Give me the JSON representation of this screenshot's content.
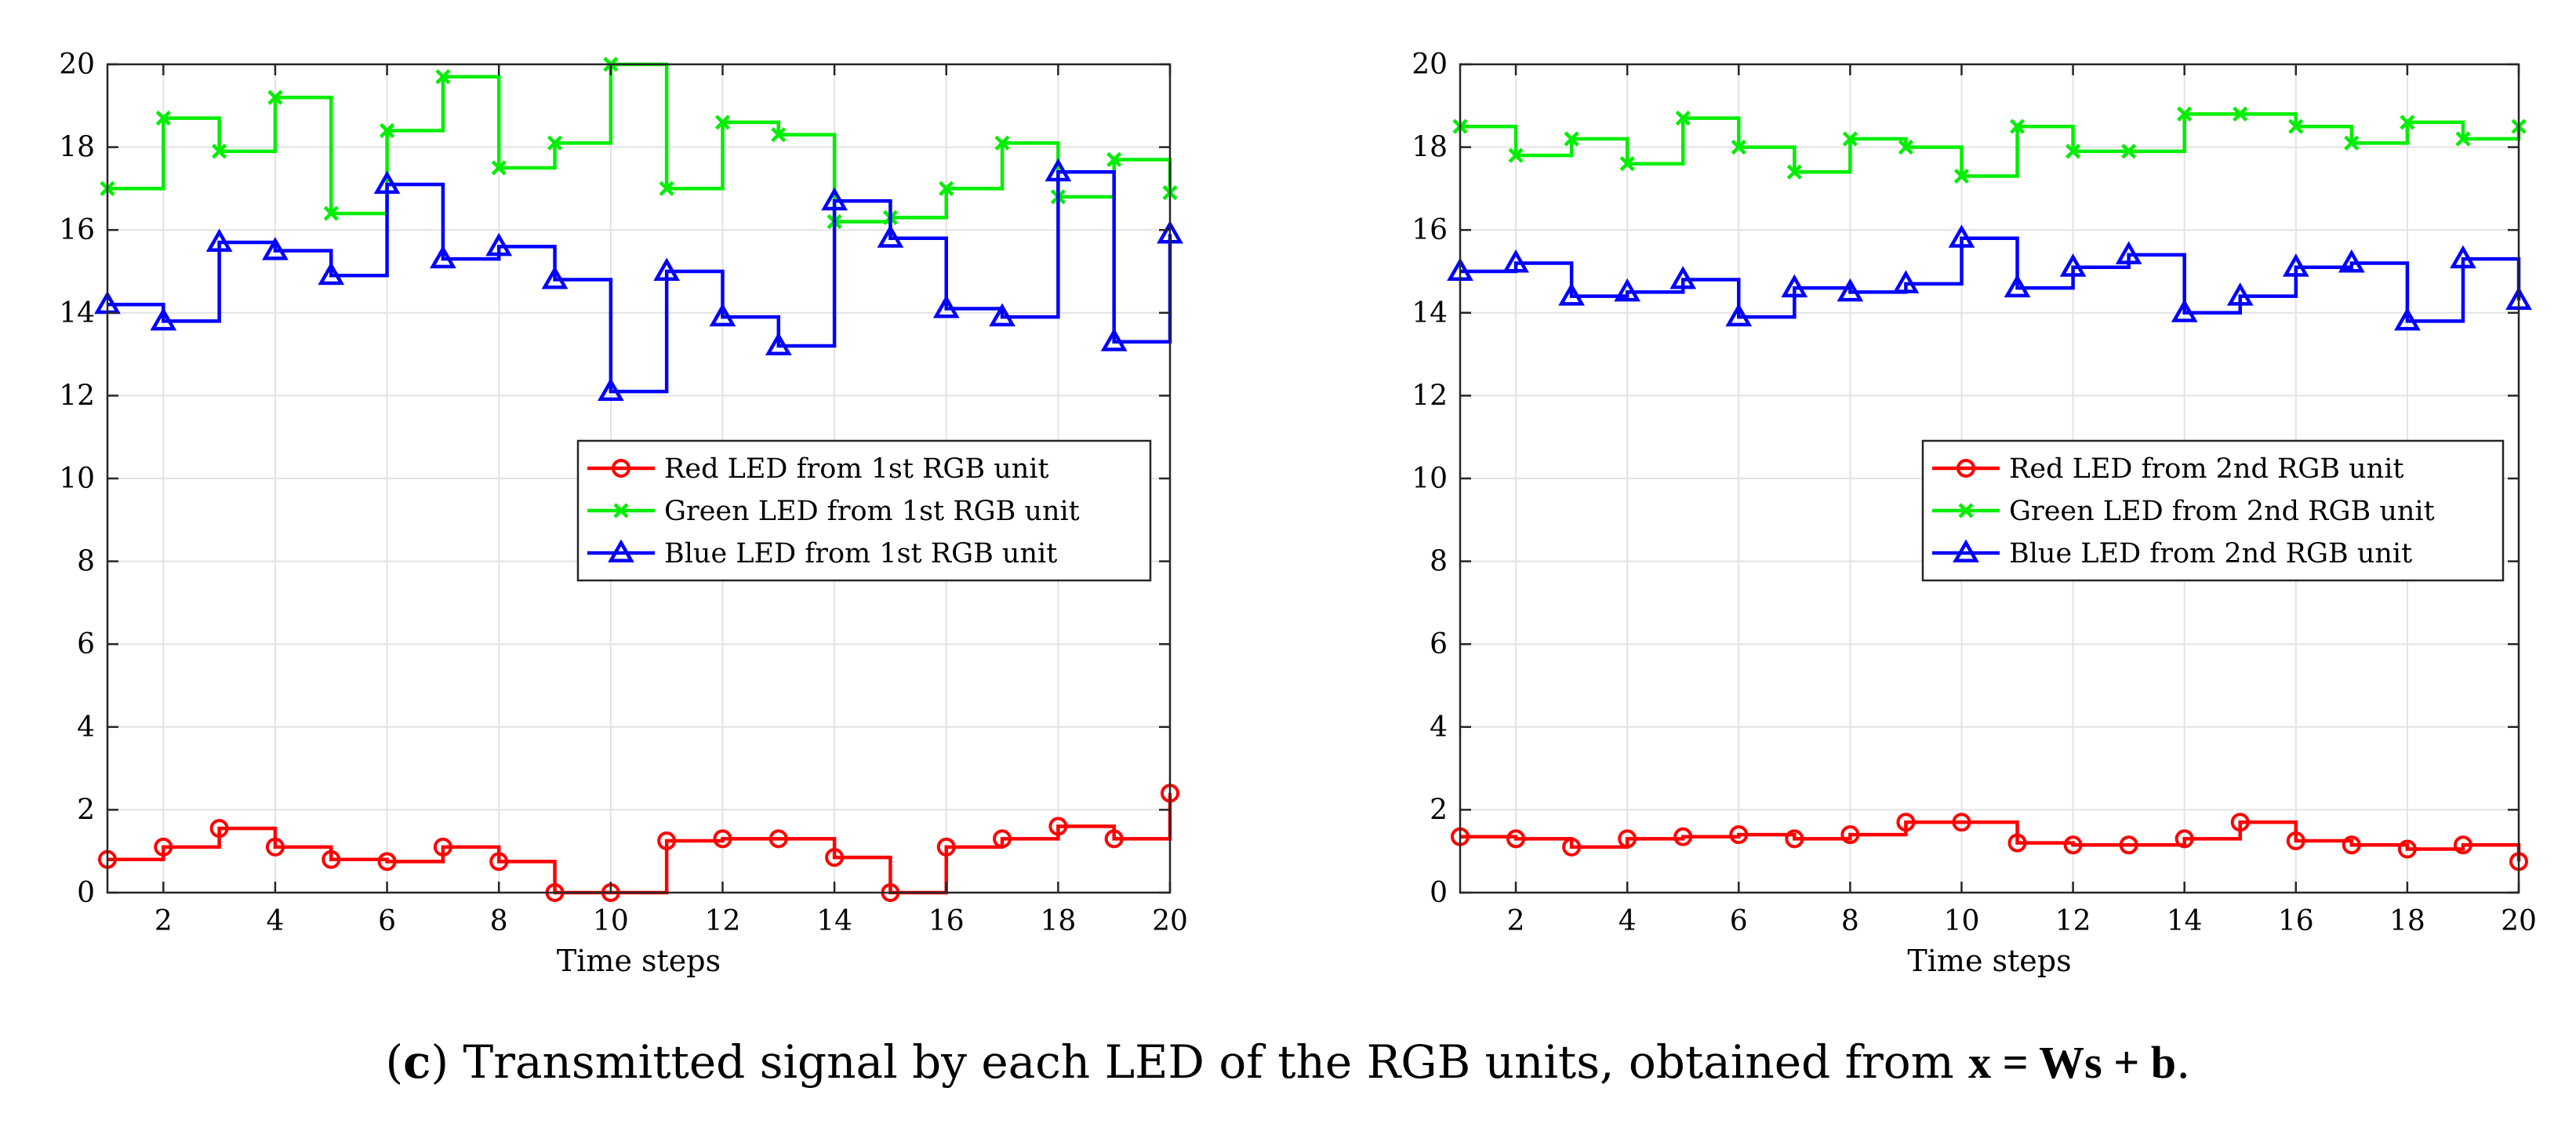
{
  "caption": {
    "label": "c",
    "text": " Transmitted signal by each LED of the RGB units, obtained from ",
    "formula": "x = Ws + b",
    "end": "."
  },
  "colors": {
    "red": "#ff0000",
    "green": "#00ee00",
    "blue": "#0000ff",
    "grid": "#e3e3e3",
    "axis": "#262626"
  },
  "chart_data": [
    {
      "type": "line",
      "step": "post",
      "xlabel": "Time steps",
      "ylabel": "",
      "xlim": [
        1,
        20
      ],
      "ylim": [
        0,
        20
      ],
      "xticks": [
        2,
        4,
        6,
        8,
        10,
        12,
        14,
        16,
        18,
        20
      ],
      "yticks": [
        0,
        2,
        4,
        6,
        8,
        10,
        12,
        14,
        16,
        18,
        20
      ],
      "grid": true,
      "legend_position": "middle-right",
      "x": [
        1,
        2,
        3,
        4,
        5,
        6,
        7,
        8,
        9,
        10,
        11,
        12,
        13,
        14,
        15,
        16,
        17,
        18,
        19,
        20
      ],
      "series": [
        {
          "name": "Red LED from 1st RGB unit",
          "color": "red",
          "marker": "circle",
          "values": [
            0.8,
            1.1,
            1.55,
            1.1,
            0.8,
            0.75,
            1.1,
            0.75,
            0.0,
            0.0,
            1.25,
            1.3,
            1.3,
            0.85,
            0.0,
            1.1,
            1.3,
            1.6,
            1.3,
            2.4
          ]
        },
        {
          "name": "Green LED from 1st RGB unit",
          "color": "green",
          "marker": "x",
          "values": [
            17.0,
            18.7,
            17.9,
            19.2,
            16.4,
            18.4,
            19.7,
            17.5,
            18.1,
            20.0,
            17.0,
            18.6,
            18.3,
            16.2,
            16.3,
            17.0,
            18.1,
            16.8,
            17.7,
            16.9
          ]
        },
        {
          "name": "Blue LED from 1st RGB unit",
          "color": "blue",
          "marker": "triangle",
          "values": [
            14.2,
            13.8,
            15.7,
            15.5,
            14.9,
            17.1,
            15.3,
            15.6,
            14.8,
            12.1,
            15.0,
            13.9,
            13.2,
            16.7,
            15.8,
            14.1,
            13.9,
            17.4,
            13.3,
            15.9
          ]
        }
      ]
    },
    {
      "type": "line",
      "step": "post",
      "xlabel": "Time steps",
      "ylabel": "",
      "xlim": [
        1,
        20
      ],
      "ylim": [
        0,
        20
      ],
      "xticks": [
        2,
        4,
        6,
        8,
        10,
        12,
        14,
        16,
        18,
        20
      ],
      "yticks": [
        0,
        2,
        4,
        6,
        8,
        10,
        12,
        14,
        16,
        18,
        20
      ],
      "grid": true,
      "legend_position": "middle-right",
      "x": [
        1,
        2,
        3,
        4,
        5,
        6,
        7,
        8,
        9,
        10,
        11,
        12,
        13,
        14,
        15,
        16,
        17,
        18,
        19,
        20
      ],
      "series": [
        {
          "name": "Red LED from 2nd RGB unit",
          "color": "red",
          "marker": "circle",
          "values": [
            1.35,
            1.3,
            1.1,
            1.3,
            1.35,
            1.4,
            1.3,
            1.4,
            1.7,
            1.7,
            1.2,
            1.15,
            1.15,
            1.3,
            1.7,
            1.25,
            1.15,
            1.05,
            1.15,
            0.75
          ]
        },
        {
          "name": "Green LED from 2nd RGB unit",
          "color": "green",
          "marker": "x",
          "values": [
            18.5,
            17.8,
            18.2,
            17.6,
            18.7,
            18.0,
            17.4,
            18.2,
            18.0,
            17.3,
            18.5,
            17.9,
            17.9,
            18.8,
            18.8,
            18.5,
            18.1,
            18.6,
            18.2,
            18.5
          ]
        },
        {
          "name": "Blue LED from 2nd RGB unit",
          "color": "blue",
          "marker": "triangle",
          "values": [
            15.0,
            15.2,
            14.4,
            14.5,
            14.8,
            13.9,
            14.6,
            14.5,
            14.7,
            15.8,
            14.6,
            15.1,
            15.4,
            14.0,
            14.4,
            15.1,
            15.2,
            13.8,
            15.3,
            14.3
          ]
        }
      ]
    }
  ]
}
